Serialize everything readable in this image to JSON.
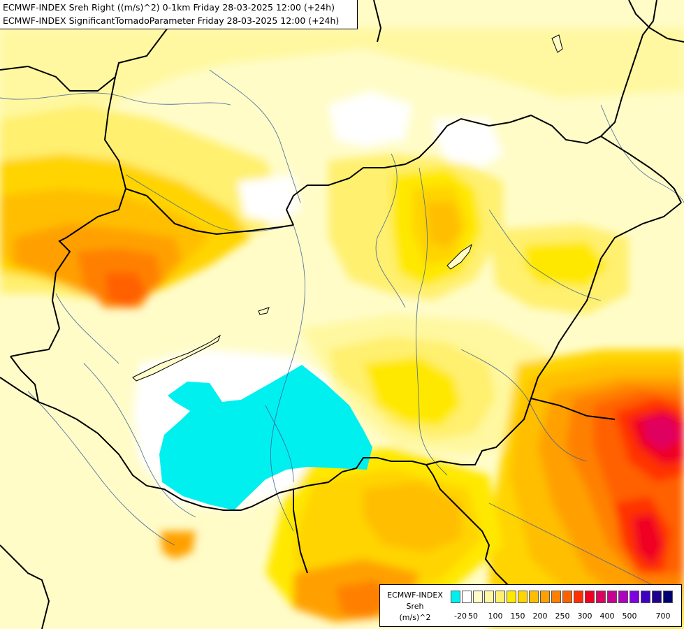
{
  "header": {
    "line1": "ECMWF-INDEX Sreh Right ((m/s)^2) 0-1km Friday 28-03-2025 12:00 (+24h)",
    "line2": "ECMWF-INDEX SignificantTornadoParameter Friday 28-03-2025 12:00 (+24h)"
  },
  "legend": {
    "title1": "ECMWF-INDEX",
    "title2": "Sreh",
    "title3": "(m/s)^2",
    "colors": [
      "#00f0f0",
      "#ffffff",
      "#fffcc8",
      "#fff8a0",
      "#fff070",
      "#ffe800",
      "#ffd400",
      "#ffbe00",
      "#ffa000",
      "#ff8000",
      "#ff6000",
      "#ff3000",
      "#f00020",
      "#e00060",
      "#c80090",
      "#b000c0",
      "#8000e0",
      "#4000c0",
      "#200090",
      "#000070"
    ],
    "ticks": [
      "-20",
      "50",
      "100",
      "150",
      "200",
      "250",
      "300",
      "400",
      "500",
      "700"
    ]
  }
}
